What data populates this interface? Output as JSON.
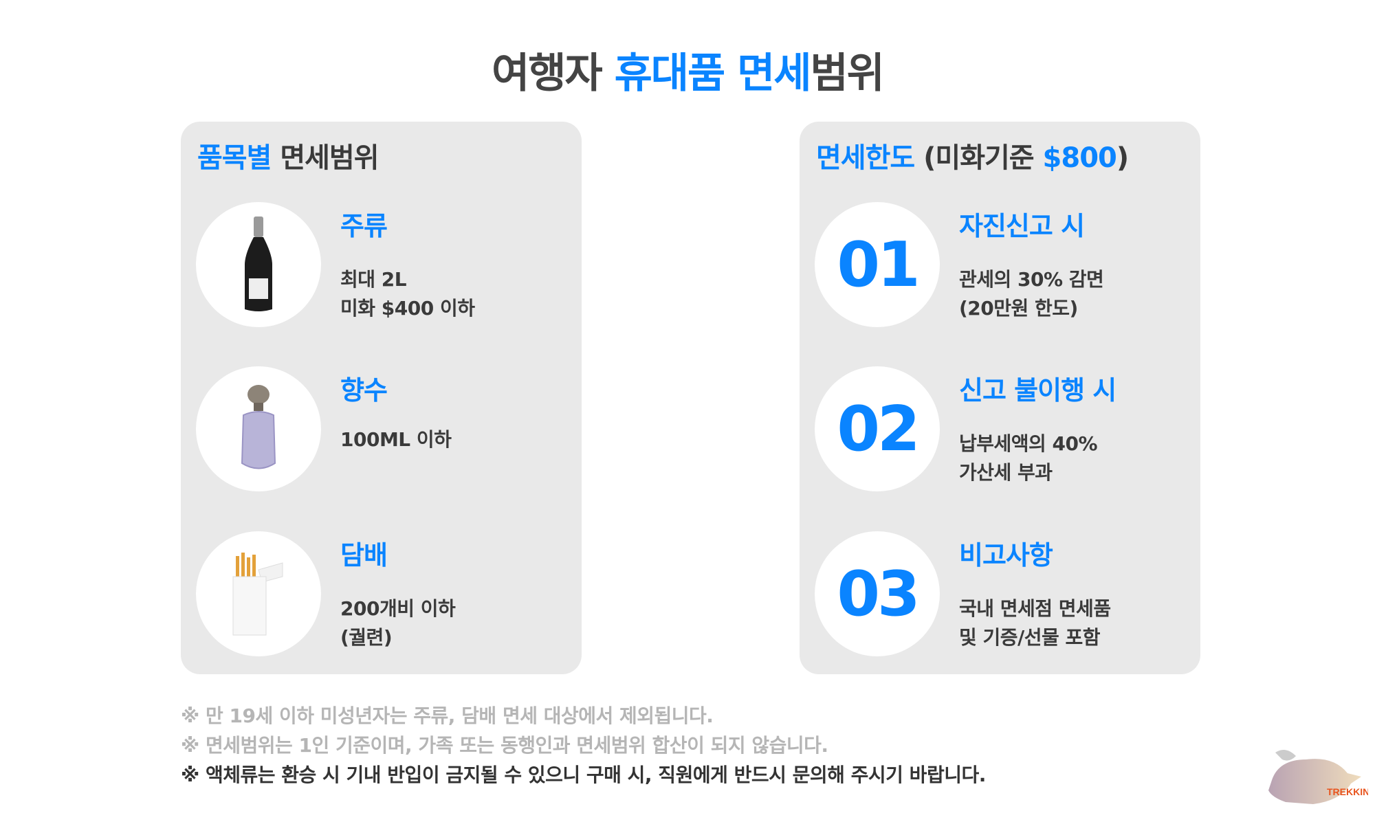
{
  "title": {
    "part1": "여행자 ",
    "part2": "휴대품 면세",
    "part3": "범위"
  },
  "left_panel": {
    "heading_accent": "품목별",
    "heading_rest": " 면세범위",
    "items": [
      {
        "icon": "champagne-bottle-icon",
        "title": "주류",
        "lines": [
          "최대 2L",
          "미화 $400 이하"
        ]
      },
      {
        "icon": "perfume-bottle-icon",
        "title": "향수",
        "lines": [
          "100ML 이하"
        ]
      },
      {
        "icon": "cigarette-pack-icon",
        "title": "담배",
        "lines": [
          "200개비 이하",
          "(궐련)"
        ]
      }
    ]
  },
  "right_panel": {
    "heading_accent": "면세한도",
    "heading_rest": " (미화기준 ",
    "heading_amount": "$800",
    "heading_close": ")",
    "items": [
      {
        "number": "01",
        "title": "자진신고 시",
        "lines": [
          "관세의 30% 감면",
          "(20만원 한도)"
        ]
      },
      {
        "number": "02",
        "title": "신고 불이행 시",
        "lines": [
          "납부세액의 40%",
          "가산세 부과"
        ]
      },
      {
        "number": "03",
        "title": "비고사항",
        "lines": [
          "국내 면세점 면세품",
          "및 기증/선물 포함"
        ]
      }
    ]
  },
  "notes": [
    "※ 만 19세 이하 미성년자는 주류, 담배 면세 대상에서 제외됩니다.",
    "※ 면세범위는 1인 기준이며, 가족 또는 동행인과 면세범위 합산이 되지 않습니다.",
    "※ 액체류는 환승 시 기내 반입이 금지될 수 있으니 구매 시, 직원에게 반드시 문의해 주시기 바랍니다."
  ],
  "logo": {
    "text": "혜초 TREKKING"
  },
  "colors": {
    "accent": "#0a84ff",
    "panel": "#e9e9e9",
    "text": "#3a3a3a",
    "note_gray": "#b5b5b5"
  }
}
